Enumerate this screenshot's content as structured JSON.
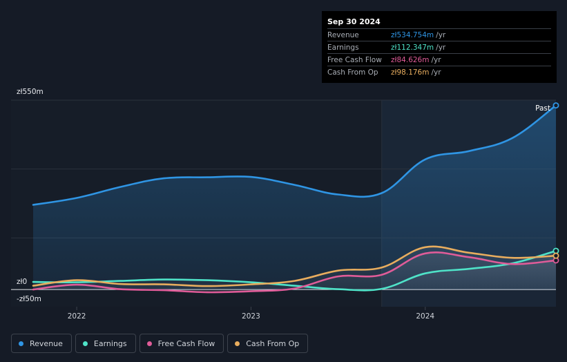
{
  "tooltip": {
    "date": "Sep 30 2024",
    "rows": [
      {
        "label": "Revenue",
        "value": "zł534.754m",
        "unit": "/yr",
        "color": "#2f95e4"
      },
      {
        "label": "Earnings",
        "value": "zł112.347m",
        "unit": "/yr",
        "color": "#4fe3c8"
      },
      {
        "label": "Free Cash Flow",
        "value": "zł84.626m",
        "unit": "/yr",
        "color": "#e05c99"
      },
      {
        "label": "Cash From Op",
        "value": "zł98.176m",
        "unit": "/yr",
        "color": "#e8ad5e"
      }
    ]
  },
  "past_label": "Past",
  "legend": [
    {
      "label": "Revenue",
      "color": "#2f95e4"
    },
    {
      "label": "Earnings",
      "color": "#4fe3c8"
    },
    {
      "label": "Free Cash Flow",
      "color": "#e05c99"
    },
    {
      "label": "Cash From Op",
      "color": "#e8ad5e"
    }
  ],
  "chart_data": {
    "type": "line",
    "ylim": [
      -50,
      550
    ],
    "y_tick_labels": [
      {
        "label": "zł550m",
        "value": 550
      },
      {
        "label": "zł0",
        "value": 0
      },
      {
        "label": "-zł50m",
        "value": -50
      }
    ],
    "x_tick_labels": [
      {
        "label": "2022",
        "value": 2022.0
      },
      {
        "label": "2023",
        "value": 2023.0
      },
      {
        "label": "2024",
        "value": 2024.0
      }
    ],
    "xlim": [
      2021.75,
      2024.75
    ],
    "past_start": 2023.75,
    "grid": true,
    "series": [
      {
        "name": "Revenue",
        "color": "#2f95e4",
        "area": true,
        "points": [
          [
            2021.75,
            246
          ],
          [
            2022.0,
            266
          ],
          [
            2022.25,
            298
          ],
          [
            2022.5,
            323
          ],
          [
            2022.75,
            326
          ],
          [
            2023.0,
            327
          ],
          [
            2023.25,
            304
          ],
          [
            2023.5,
            276
          ],
          [
            2023.75,
            280
          ],
          [
            2024.0,
            378
          ],
          [
            2024.25,
            402
          ],
          [
            2024.5,
            440
          ],
          [
            2024.75,
            534.754
          ]
        ]
      },
      {
        "name": "Earnings",
        "color": "#4fe3c8",
        "area": true,
        "points": [
          [
            2021.75,
            22
          ],
          [
            2022.0,
            21
          ],
          [
            2022.25,
            25
          ],
          [
            2022.5,
            29
          ],
          [
            2022.75,
            27
          ],
          [
            2023.0,
            21
          ],
          [
            2023.25,
            11
          ],
          [
            2023.5,
            1
          ],
          [
            2023.75,
            2
          ],
          [
            2024.0,
            47
          ],
          [
            2024.25,
            60
          ],
          [
            2024.5,
            76
          ],
          [
            2024.75,
            112.347
          ]
        ]
      },
      {
        "name": "Free Cash Flow",
        "color": "#e05c99",
        "area": true,
        "points": [
          [
            2021.75,
            0
          ],
          [
            2022.0,
            14
          ],
          [
            2022.25,
            1
          ],
          [
            2022.5,
            -2
          ],
          [
            2022.75,
            -8
          ],
          [
            2023.0,
            -5
          ],
          [
            2023.25,
            3
          ],
          [
            2023.5,
            38
          ],
          [
            2023.75,
            43
          ],
          [
            2024.0,
            105
          ],
          [
            2024.25,
            94
          ],
          [
            2024.5,
            74
          ],
          [
            2024.75,
            84.626
          ]
        ]
      },
      {
        "name": "Cash From Op",
        "color": "#e8ad5e",
        "area": true,
        "points": [
          [
            2021.75,
            11
          ],
          [
            2022.0,
            27
          ],
          [
            2022.25,
            16
          ],
          [
            2022.5,
            15
          ],
          [
            2022.75,
            10
          ],
          [
            2023.0,
            15
          ],
          [
            2023.25,
            25
          ],
          [
            2023.5,
            55
          ],
          [
            2023.75,
            64
          ],
          [
            2024.0,
            123
          ],
          [
            2024.25,
            107
          ],
          [
            2024.5,
            92
          ],
          [
            2024.75,
            98.176
          ]
        ]
      }
    ]
  }
}
